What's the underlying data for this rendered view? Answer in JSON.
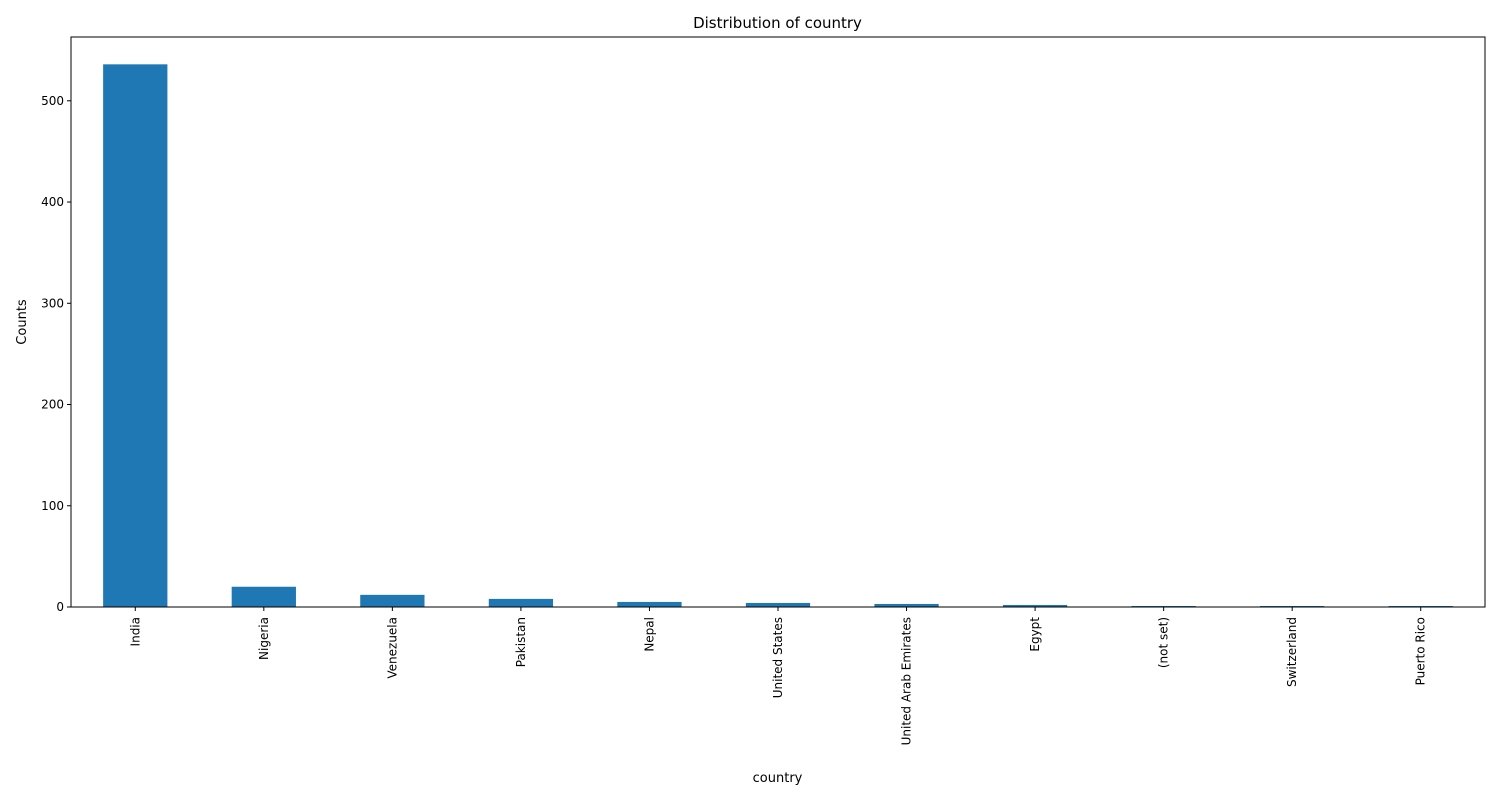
{
  "chart_data": {
    "type": "bar",
    "title": "Distribution of country",
    "xlabel": "country",
    "ylabel": "Counts",
    "categories": [
      "India",
      "Nigeria",
      "Venezuela",
      "Pakistan",
      "Nepal",
      "United States",
      "United Arab Emirates",
      "Egypt",
      "(not set)",
      "Switzerland",
      "Puerto Rico"
    ],
    "values": [
      536,
      20,
      12,
      8,
      5,
      4,
      3,
      2,
      1,
      1,
      1
    ],
    "ylim": [
      0,
      563
    ],
    "yticks": [
      0,
      100,
      200,
      300,
      400,
      500
    ],
    "grid": false,
    "legend": "none",
    "colors": {
      "bar": "#1f77b4",
      "axis": "#000000"
    }
  }
}
